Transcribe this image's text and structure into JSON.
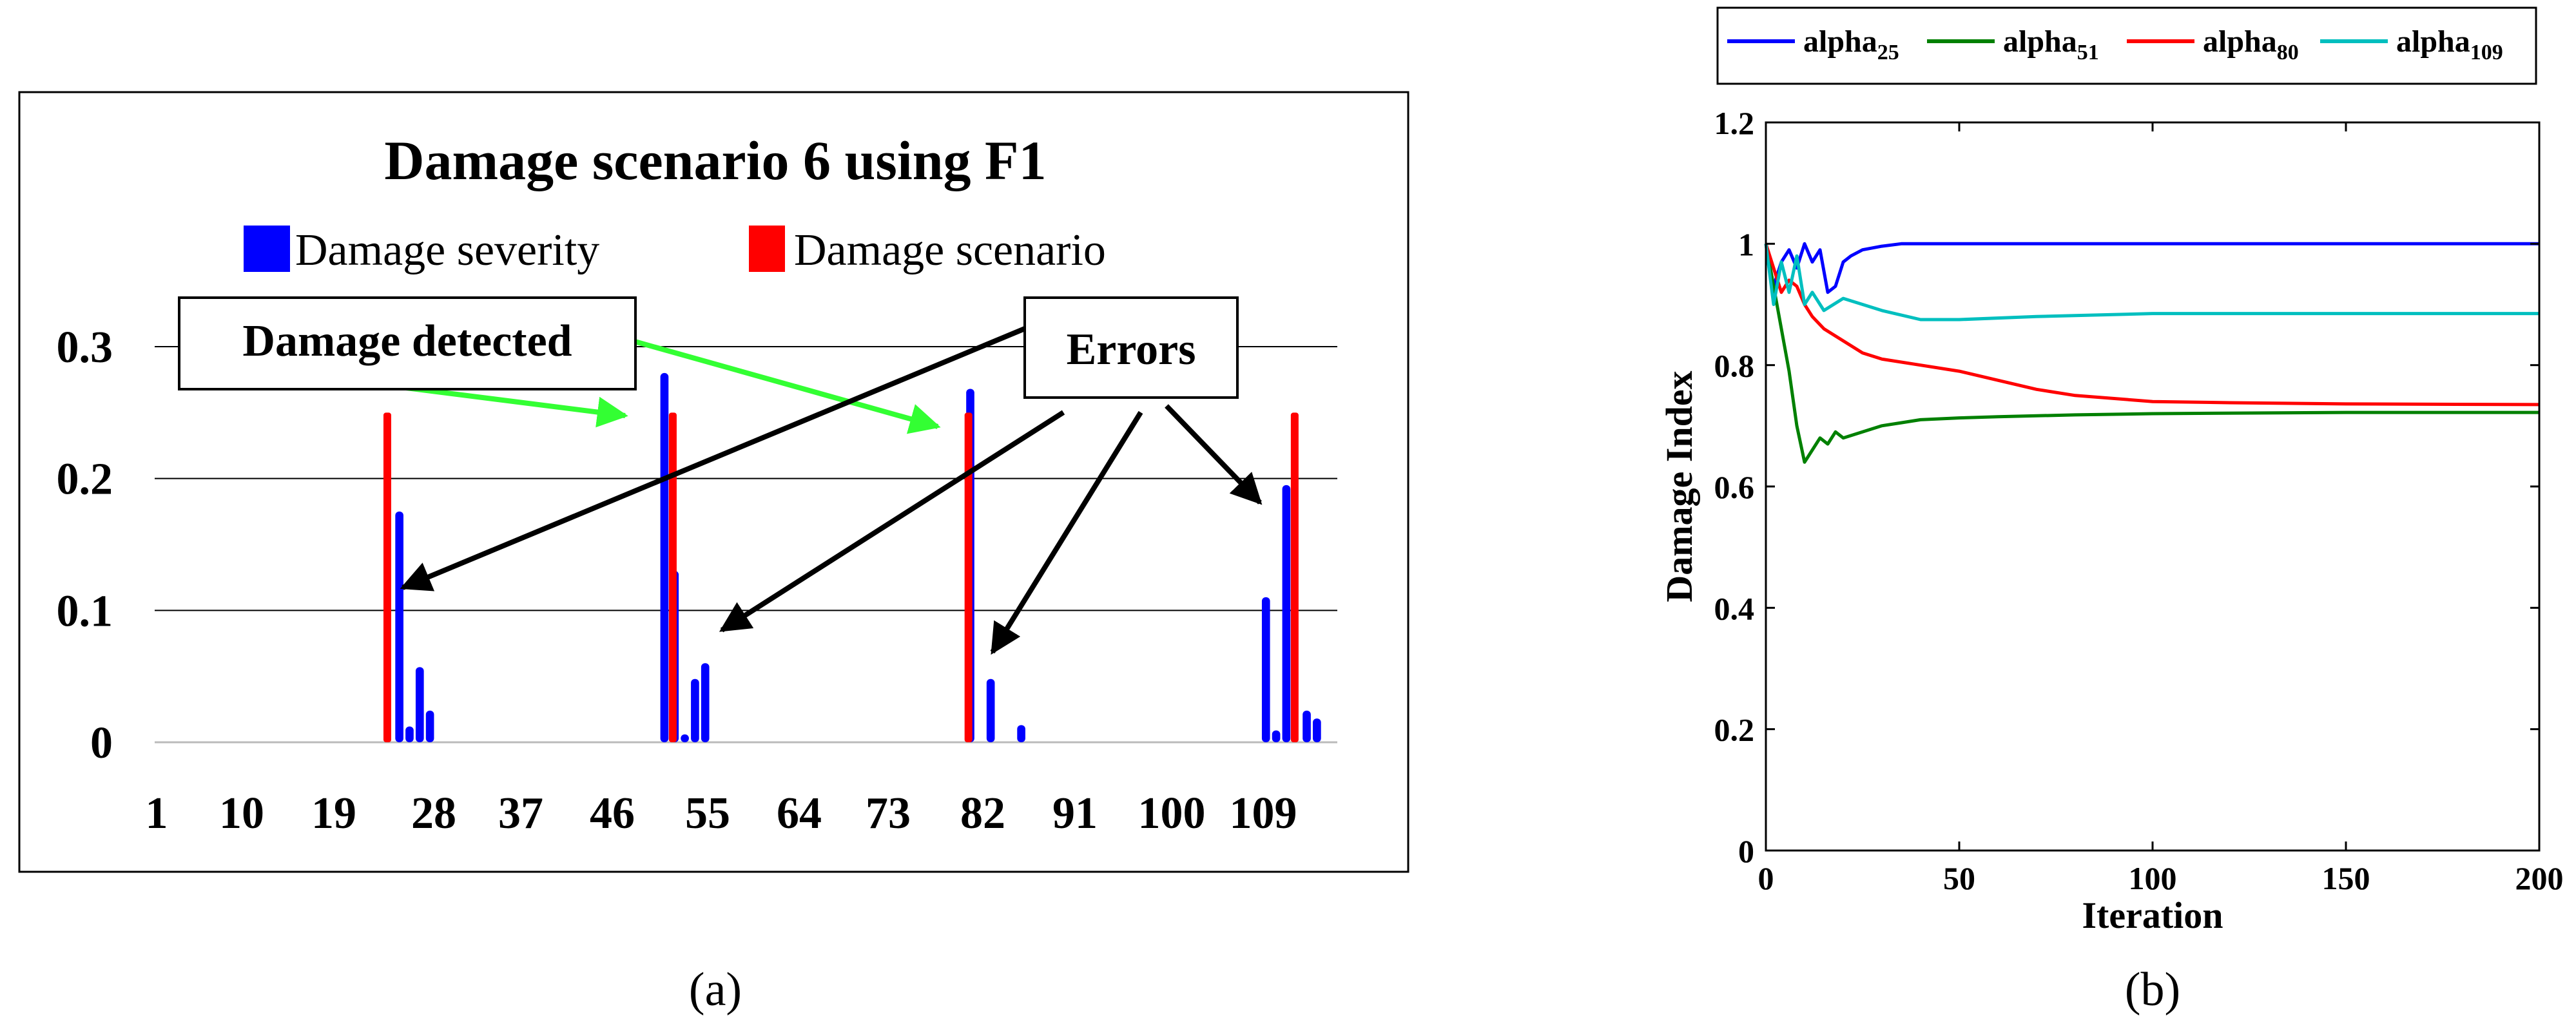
{
  "panels": {
    "a_label": "(a)",
    "b_label": "(b)"
  },
  "colors": {
    "severity": "#0000ff",
    "scenario": "#ff0000",
    "detected_arrow": "#33ff33",
    "error_arrow": "#000000",
    "alpha25": "#0000ff",
    "alpha51": "#008000",
    "alpha80": "#ff0000",
    "alpha109": "#00bfbf"
  },
  "chart_data": [
    {
      "type": "bar",
      "title": "Damage scenario 6 using F1",
      "xlabel": "",
      "ylabel": "",
      "ylim": [
        0,
        0.3
      ],
      "yticks": [
        "0",
        "0.1",
        "0.2",
        "0.3"
      ],
      "xticks": [
        "1",
        "10",
        "19",
        "28",
        "37",
        "46",
        "55",
        "64",
        "73",
        "82",
        "91",
        "100",
        "109"
      ],
      "x_range": [
        1,
        117
      ],
      "legend": {
        "placement": "top-center",
        "items": [
          "Damage severity",
          "Damage scenario"
        ]
      },
      "annotations": [
        "Damage detected",
        "Errors"
      ],
      "series": [
        {
          "name": "Damage severity",
          "x": [
            25,
            26,
            27,
            28,
            51,
            52,
            53,
            54,
            55,
            81,
            83,
            86,
            110,
            111,
            112,
            114,
            115
          ],
          "values": [
            0.175,
            0.012,
            0.057,
            0.024,
            0.28,
            0.13,
            0.006,
            0.048,
            0.06,
            0.268,
            0.048,
            0.013,
            0.11,
            0.009,
            0.195,
            0.024,
            0.018
          ]
        },
        {
          "name": "Damage scenario",
          "x": [
            24,
            52,
            81,
            113
          ],
          "values": [
            0.25,
            0.25,
            0.25,
            0.25
          ]
        }
      ]
    },
    {
      "type": "line",
      "title": "",
      "xlabel": "Iteration",
      "ylabel": "Damage Index",
      "xlim": [
        0,
        200
      ],
      "ylim": [
        0,
        1.2
      ],
      "xticks": [
        "0",
        "50",
        "100",
        "150",
        "200"
      ],
      "yticks": [
        "0",
        "0.2",
        "0.4",
        "0.6",
        "0.8",
        "1",
        "1.2"
      ],
      "legend": {
        "placement": "top-outside",
        "items": [
          "alpha25",
          "alpha51",
          "alpha80",
          "alpha109"
        ]
      },
      "series": [
        {
          "name": "alpha25",
          "label_base": "alpha",
          "label_sub": "25",
          "x": [
            0,
            2,
            4,
            6,
            8,
            10,
            12,
            14,
            16,
            18,
            20,
            22,
            25,
            30,
            35,
            40,
            50,
            100,
            150,
            200
          ],
          "values": [
            1.0,
            0.93,
            0.97,
            0.99,
            0.96,
            1.0,
            0.97,
            0.99,
            0.92,
            0.93,
            0.97,
            0.98,
            0.99,
            0.996,
            1.0,
            1.0,
            1.0,
            1.0,
            1.0,
            1.0
          ]
        },
        {
          "name": "alpha51",
          "label_base": "alpha",
          "label_sub": "51",
          "x": [
            0,
            2,
            4,
            6,
            8,
            10,
            12,
            14,
            16,
            18,
            20,
            25,
            30,
            35,
            40,
            50,
            60,
            80,
            100,
            150,
            200
          ],
          "values": [
            1.0,
            0.93,
            0.86,
            0.79,
            0.7,
            0.64,
            0.66,
            0.68,
            0.67,
            0.69,
            0.68,
            0.69,
            0.7,
            0.705,
            0.71,
            0.713,
            0.715,
            0.718,
            0.72,
            0.722,
            0.722
          ]
        },
        {
          "name": "alpha80",
          "label_base": "alpha",
          "label_sub": "80",
          "x": [
            0,
            2,
            4,
            6,
            8,
            10,
            12,
            15,
            20,
            25,
            30,
            40,
            50,
            60,
            70,
            80,
            100,
            120,
            150,
            200
          ],
          "values": [
            1.0,
            0.96,
            0.92,
            0.94,
            0.93,
            0.9,
            0.88,
            0.86,
            0.84,
            0.82,
            0.81,
            0.8,
            0.79,
            0.775,
            0.76,
            0.75,
            0.74,
            0.738,
            0.736,
            0.735
          ]
        },
        {
          "name": "alpha109",
          "label_base": "alpha",
          "label_sub": "109",
          "x": [
            0,
            2,
            4,
            6,
            8,
            10,
            12,
            15,
            20,
            25,
            30,
            40,
            50,
            70,
            100,
            150,
            200
          ],
          "values": [
            1.0,
            0.9,
            0.97,
            0.92,
            0.98,
            0.9,
            0.92,
            0.89,
            0.91,
            0.9,
            0.89,
            0.875,
            0.875,
            0.88,
            0.885,
            0.885,
            0.885
          ]
        }
      ]
    }
  ]
}
